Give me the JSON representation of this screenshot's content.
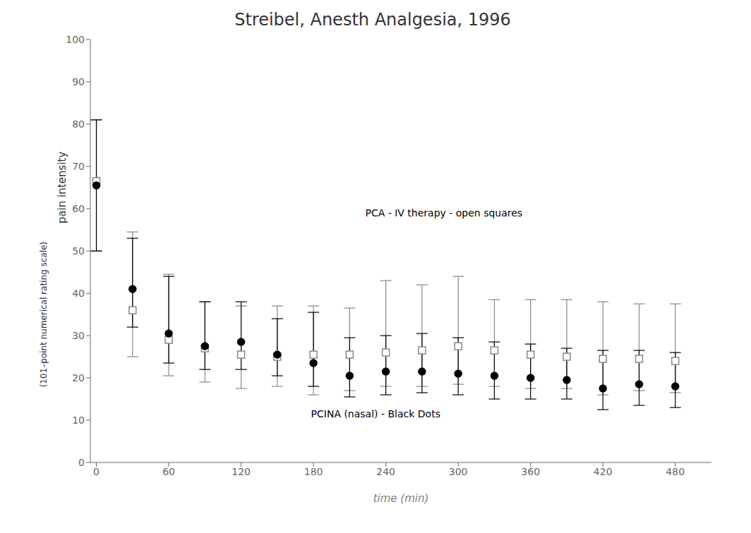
{
  "chart_data": {
    "type": "scatter",
    "title": "Streibel, Anesth Analgesia, 1996",
    "xlabel": "time (min)",
    "ylabel": [
      "pain intensity",
      "(101–point numerical rating scale)"
    ],
    "xlim": [
      -5,
      510
    ],
    "ylim": [
      0,
      100
    ],
    "xticks": [
      0,
      60,
      120,
      180,
      240,
      300,
      360,
      420,
      480
    ],
    "yticks": [
      0,
      10,
      20,
      30,
      40,
      50,
      60,
      70,
      80,
      90,
      100
    ],
    "grid": false,
    "x": [
      0,
      30,
      60,
      90,
      120,
      150,
      180,
      210,
      240,
      270,
      300,
      330,
      360,
      390,
      420,
      450,
      480
    ],
    "series": [
      {
        "color": "#888888",
        "marker": "open_square",
        "values": [
          66.5,
          36.0,
          29.0,
          27.0,
          25.5,
          25.0,
          25.5,
          25.5,
          26.0,
          26.5,
          27.5,
          26.5,
          25.5,
          25.0,
          24.5,
          24.5,
          24.0
        ],
        "error_low": [
          16.5,
          11.0,
          8.5,
          8.0,
          8.0,
          7.0,
          9.5,
          8.5,
          8.0,
          8.5,
          9.0,
          8.5,
          8.0,
          7.5,
          8.5,
          7.5,
          7.5
        ],
        "error_high": [
          14.5,
          18.5,
          15.5,
          11.0,
          11.5,
          12.0,
          11.5,
          11.0,
          17.0,
          15.5,
          16.5,
          12.0,
          13.0,
          13.5,
          13.5,
          13.0,
          13.5
        ]
      },
      {
        "color": "#000000",
        "marker": "circle",
        "values": [
          65.5,
          41.0,
          30.5,
          27.5,
          28.5,
          25.5,
          23.5,
          20.5,
          21.5,
          21.5,
          21.0,
          20.5,
          20.0,
          19.5,
          17.5,
          18.5,
          18.0
        ],
        "error_low": [
          15.5,
          9.0,
          7.0,
          5.5,
          6.5,
          5.0,
          5.5,
          5.0,
          5.5,
          5.0,
          5.0,
          5.5,
          5.0,
          4.5,
          5.0,
          5.0,
          5.0
        ],
        "error_high": [
          15.5,
          12.0,
          13.5,
          10.5,
          9.5,
          8.5,
          12.0,
          9.0,
          8.5,
          9.0,
          8.5,
          8.0,
          8.0,
          7.5,
          9.0,
          8.0,
          8.0
        ]
      }
    ],
    "annotations": [
      {
        "text": "PCA - IV therapy - open squares",
        "x": 220,
        "y": 59
      },
      {
        "text": "PCINA (nasal) - Black Dots",
        "x": 175,
        "y": 11.5
      }
    ]
  }
}
